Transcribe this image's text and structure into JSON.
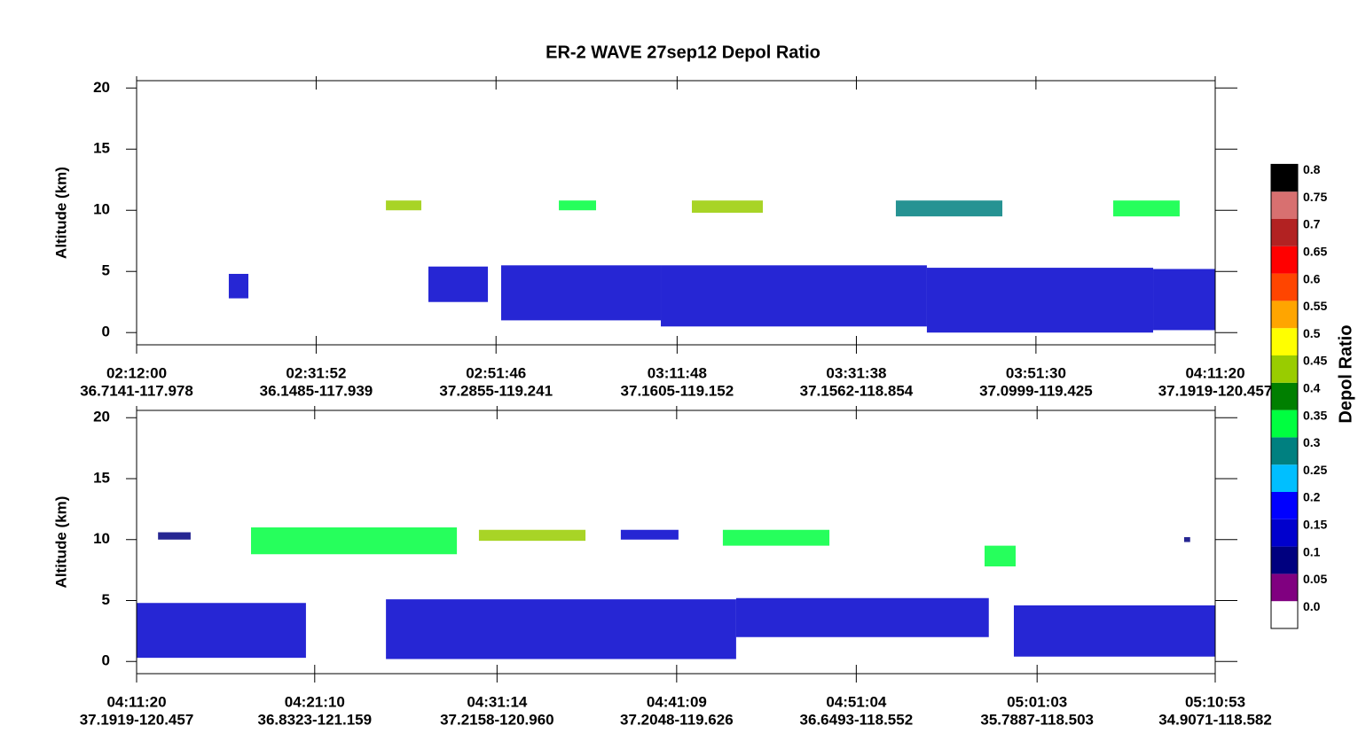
{
  "chart_data": [
    {
      "type": "curtain",
      "title": "ER-2 WAVE 27sep12 Depol Ratio",
      "ylabel": "Altitude (km)",
      "ylim": [
        -1,
        20.6
      ],
      "yticks": [
        0,
        5,
        10,
        15,
        20
      ],
      "xlim": [
        "02:12:00",
        "04:11:20"
      ],
      "xticks": [
        {
          "time": "02:12:00",
          "location": "36.7141-117.978"
        },
        {
          "time": "02:31:52",
          "location": "36.1485-117.939"
        },
        {
          "time": "02:51:46",
          "location": "37.2855-119.241"
        },
        {
          "time": "03:11:48",
          "location": "37.1605-119.152"
        },
        {
          "time": "03:31:38",
          "location": "37.1562-118.854"
        },
        {
          "time": "03:51:30",
          "location": "37.0999-119.425"
        },
        {
          "time": "04:11:20",
          "location": "37.1919-120.457"
        }
      ],
      "layers": [
        {
          "start": "02:22:12",
          "end": "02:24:22",
          "base": 2.8,
          "top": 4.8,
          "value": 0.15
        },
        {
          "start": "02:39:35",
          "end": "02:43:30",
          "base": 10,
          "top": 10.8,
          "value": 0.45
        },
        {
          "start": "02:44:17",
          "end": "02:50:52",
          "base": 2.5,
          "top": 5.4,
          "value": 0.15
        },
        {
          "start": "02:52:20",
          "end": "03:10:00",
          "base": 1,
          "top": 5.5,
          "value": 0.15
        },
        {
          "start": "02:58:43",
          "end": "03:02:50",
          "base": 10,
          "top": 10.8,
          "value": 0.35
        },
        {
          "start": "03:10:00",
          "end": "03:39:26",
          "base": 0.5,
          "top": 5.5,
          "value": 0.15
        },
        {
          "start": "03:13:26",
          "end": "03:21:17",
          "base": 9.8,
          "top": 10.8,
          "value": 0.45
        },
        {
          "start": "03:36:00",
          "end": "03:47:47",
          "base": 9.5,
          "top": 10.8,
          "value": 0.3
        },
        {
          "start": "03:39:26",
          "end": "04:04:28",
          "base": 0,
          "top": 5.3,
          "value": 0.15
        },
        {
          "start": "04:00:03",
          "end": "04:07:24",
          "base": 9.5,
          "top": 10.8,
          "value": 0.35
        },
        {
          "start": "04:04:28",
          "end": "04:11:20",
          "base": 0.2,
          "top": 5.2,
          "value": 0.15
        }
      ]
    },
    {
      "type": "curtain",
      "ylabel": "Altitude (km)",
      "ylim": [
        -1,
        20.6
      ],
      "yticks": [
        0,
        5,
        10,
        15,
        20
      ],
      "xlim": [
        "04:11:20",
        "05:10:53"
      ],
      "xticks": [
        {
          "time": "04:11:20",
          "location": "37.1919-120.457"
        },
        {
          "time": "04:21:10",
          "location": "36.8323-121.159"
        },
        {
          "time": "04:31:14",
          "location": "37.2158-120.960"
        },
        {
          "time": "04:41:09",
          "location": "37.2048-119.626"
        },
        {
          "time": "04:51:04",
          "location": "36.6493-118.552"
        },
        {
          "time": "05:01:03",
          "location": "35.7887-118.503"
        },
        {
          "time": "05:10:53",
          "location": "34.9071-118.582"
        }
      ],
      "layers": [
        {
          "start": "04:11:20",
          "end": "04:20:41",
          "base": 0.3,
          "top": 4.8,
          "value": 0.15
        },
        {
          "start": "04:12:31",
          "end": "04:14:19",
          "base": 10,
          "top": 10.6,
          "value": 0.1
        },
        {
          "start": "04:17:39",
          "end": "04:29:01",
          "base": 8.8,
          "top": 11,
          "value": 0.35
        },
        {
          "start": "04:25:06",
          "end": "04:44:26",
          "base": 0.2,
          "top": 5.1,
          "value": 0.15
        },
        {
          "start": "04:30:14",
          "end": "04:36:07",
          "base": 9.9,
          "top": 10.8,
          "value": 0.45
        },
        {
          "start": "04:38:04",
          "end": "04:41:15",
          "base": 10,
          "top": 10.8,
          "value": 0.15
        },
        {
          "start": "04:43:42",
          "end": "04:49:35",
          "base": 9.5,
          "top": 10.8,
          "value": 0.35
        },
        {
          "start": "04:44:26",
          "end": "04:58:23",
          "base": 2,
          "top": 5.2,
          "value": 0.15
        },
        {
          "start": "04:58:09",
          "end": "04:59:52",
          "base": 7.8,
          "top": 9.5,
          "value": 0.35
        },
        {
          "start": "04:59:46",
          "end": "05:10:53",
          "base": 0.4,
          "top": 4.6,
          "value": 0.15
        },
        {
          "start": "05:09:10",
          "end": "05:09:30",
          "base": 9.8,
          "top": 10.2,
          "value": 0.1
        }
      ]
    }
  ],
  "colorbar": {
    "title": "Depol Ratio",
    "levels": [
      {
        "value": 0,
        "label": "0.0"
      },
      0.05,
      0.1,
      0.15,
      0.2,
      0.25,
      0.3,
      0.35,
      0.4,
      0.45,
      0.5,
      0.55,
      0.6,
      0.65,
      0.7,
      0.75,
      0.8
    ],
    "colors": [
      "#ffffff",
      "#800080",
      "#00007f",
      "#0000cd",
      "#0000ff",
      "#00bfff",
      "#008080",
      "#00ff40",
      "#007f00",
      "#99cc00",
      "#ffff00",
      "#ffa500",
      "#ff4500",
      "#ff0000",
      "#b22222",
      "#d87070",
      "#000000"
    ]
  }
}
